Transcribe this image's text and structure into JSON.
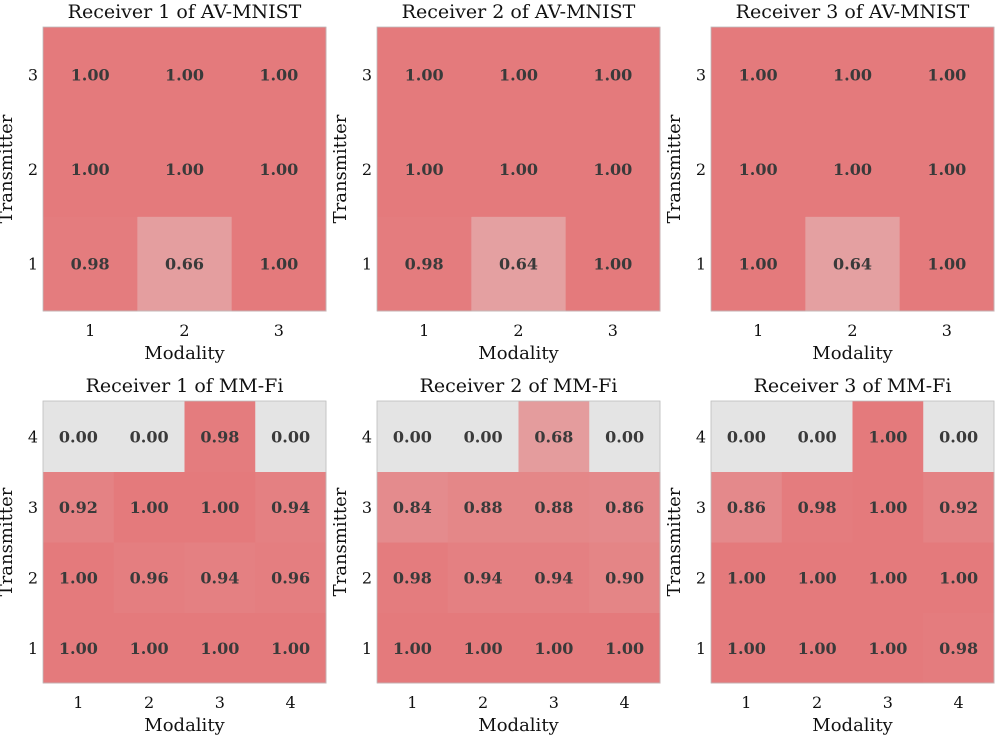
{
  "chart_data": [
    {
      "type": "heatmap",
      "title": "Receiver 1 of AV-MNIST",
      "xlabel": "Modality",
      "ylabel": "Transmitter",
      "x_ticks": [
        "1",
        "2",
        "3"
      ],
      "y_ticks": [
        "1",
        "2",
        "3"
      ],
      "values": [
        [
          0.98,
          0.66,
          1.0
        ],
        [
          1.0,
          1.0,
          1.0
        ],
        [
          1.0,
          1.0,
          1.0
        ]
      ],
      "labels": [
        [
          "0.98",
          "0.66",
          "1.00"
        ],
        [
          "1.00",
          "1.00",
          "1.00"
        ],
        [
          "1.00",
          "1.00",
          "1.00"
        ]
      ]
    },
    {
      "type": "heatmap",
      "title": "Receiver 2 of AV-MNIST",
      "xlabel": "Modality",
      "ylabel": "Transmitter",
      "x_ticks": [
        "1",
        "2",
        "3"
      ],
      "y_ticks": [
        "1",
        "2",
        "3"
      ],
      "values": [
        [
          0.98,
          0.64,
          1.0
        ],
        [
          1.0,
          1.0,
          1.0
        ],
        [
          1.0,
          1.0,
          1.0
        ]
      ],
      "labels": [
        [
          "0.98",
          "0.64",
          "1.00"
        ],
        [
          "1.00",
          "1.00",
          "1.00"
        ],
        [
          "1.00",
          "1.00",
          "1.00"
        ]
      ]
    },
    {
      "type": "heatmap",
      "title": "Receiver 3 of AV-MNIST",
      "xlabel": "Modality",
      "ylabel": "Transmitter",
      "x_ticks": [
        "1",
        "2",
        "3"
      ],
      "y_ticks": [
        "1",
        "2",
        "3"
      ],
      "values": [
        [
          1.0,
          0.64,
          1.0
        ],
        [
          1.0,
          1.0,
          1.0
        ],
        [
          1.0,
          1.0,
          1.0
        ]
      ],
      "labels": [
        [
          "1.00",
          "0.64",
          "1.00"
        ],
        [
          "1.00",
          "1.00",
          "1.00"
        ],
        [
          "1.00",
          "1.00",
          "1.00"
        ]
      ]
    },
    {
      "type": "heatmap",
      "title": "Receiver 1 of MM-Fi",
      "xlabel": "Modality",
      "ylabel": "Transmitter",
      "x_ticks": [
        "1",
        "2",
        "3",
        "4"
      ],
      "y_ticks": [
        "1",
        "2",
        "3",
        "4"
      ],
      "values": [
        [
          1.0,
          1.0,
          1.0,
          1.0
        ],
        [
          1.0,
          0.96,
          0.94,
          0.96
        ],
        [
          0.92,
          1.0,
          1.0,
          0.94
        ],
        [
          0.0,
          0.0,
          0.98,
          0.0
        ]
      ],
      "labels": [
        [
          "1.00",
          "1.00",
          "1.00",
          "1.00"
        ],
        [
          "1.00",
          "0.96",
          "0.94",
          "0.96"
        ],
        [
          "0.92",
          "1.00",
          "1.00",
          "0.94"
        ],
        [
          "0.00",
          "0.00",
          "0.98",
          "0.00"
        ]
      ]
    },
    {
      "type": "heatmap",
      "title": "Receiver 2 of MM-Fi",
      "xlabel": "Modality",
      "ylabel": "Transmitter",
      "x_ticks": [
        "1",
        "2",
        "3",
        "4"
      ],
      "y_ticks": [
        "1",
        "2",
        "3",
        "4"
      ],
      "values": [
        [
          1.0,
          1.0,
          1.0,
          1.0
        ],
        [
          0.98,
          0.94,
          0.94,
          0.9
        ],
        [
          0.84,
          0.88,
          0.88,
          0.86
        ],
        [
          0.0,
          0.0,
          0.68,
          0.0
        ]
      ],
      "labels": [
        [
          "1.00",
          "1.00",
          "1.00",
          "1.00"
        ],
        [
          "0.98",
          "0.94",
          "0.94",
          "0.90"
        ],
        [
          "0.84",
          "0.88",
          "0.88",
          "0.86"
        ],
        [
          "0.00",
          "0.00",
          "0.68",
          "0.00"
        ]
      ]
    },
    {
      "type": "heatmap",
      "title": "Receiver 3 of MM-Fi",
      "xlabel": "Modality",
      "ylabel": "Transmitter",
      "x_ticks": [
        "1",
        "2",
        "3",
        "4"
      ],
      "y_ticks": [
        "1",
        "2",
        "3",
        "4"
      ],
      "values": [
        [
          1.0,
          1.0,
          1.0,
          0.98
        ],
        [
          1.0,
          1.0,
          1.0,
          1.0
        ],
        [
          0.86,
          0.98,
          1.0,
          0.92
        ],
        [
          0.0,
          0.0,
          1.0,
          0.0
        ]
      ],
      "labels": [
        [
          "1.00",
          "1.00",
          "1.00",
          "0.98"
        ],
        [
          "1.00",
          "1.00",
          "1.00",
          "1.00"
        ],
        [
          "0.86",
          "0.98",
          "1.00",
          "0.92"
        ],
        [
          "0.00",
          "0.00",
          "1.00",
          "0.00"
        ]
      ]
    }
  ],
  "colors": {
    "high": "#e47a7c",
    "low": "#e4e4e4",
    "label_text": "#3a3a3a"
  }
}
